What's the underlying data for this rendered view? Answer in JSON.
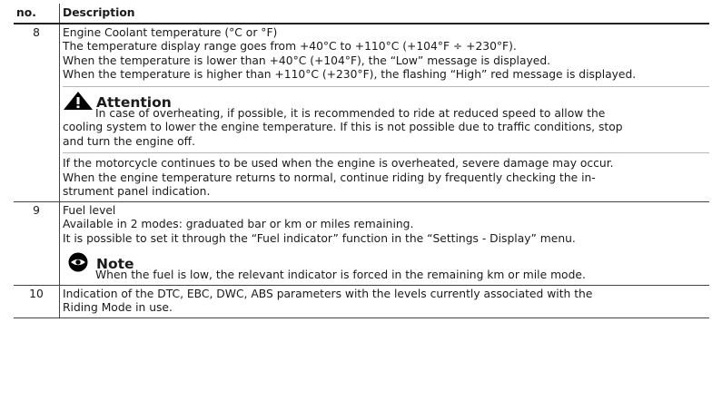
{
  "table": {
    "headers": {
      "no": "no.",
      "description": "Description"
    },
    "rows": [
      {
        "no": "8",
        "lines": [
          "Engine Coolant temperature (°C or °F)",
          "The temperature display range goes from +40°C to +110°C (+104°F ÷ +230°F).",
          "When the temperature is lower than +40°C (+104°F), the “Low” message is displayed.",
          "When the temperature is higher than +110°C (+230°F), the flashing “High” red message is displayed."
        ],
        "callout": {
          "icon": "warning-triangle-icon",
          "title": "Attention",
          "first_line": "In case of overheating, if possible, it is recommended to ride at reduced speed to allow the",
          "lines": [
            "cooling system to lower the engine temperature. If this is not possible due to traffic conditions, stop",
            "and turn the engine off."
          ],
          "extra_lines": [
            "If the motorcycle continues to be used when the engine is overheated, severe damage may occur.",
            "When the engine temperature returns to normal, continue riding by frequently checking the in-",
            "strument panel indication."
          ]
        }
      },
      {
        "no": "9",
        "lines": [
          "Fuel level",
          "Available in 2 modes: graduated bar or km or miles remaining.",
          "It is possible to set it through the “Fuel indicator” function in the “Settings - Display” menu."
        ],
        "callout": {
          "icon": "eye-icon",
          "title": "Note",
          "first_line": "When the fuel is low, the relevant indicator is forced in the remaining km or mile mode."
        }
      },
      {
        "no": "10",
        "lines": [
          "Indication of the DTC, EBC, DWC, ABS parameters with the levels currently associated with the",
          "Riding Mode in use."
        ]
      }
    ]
  }
}
